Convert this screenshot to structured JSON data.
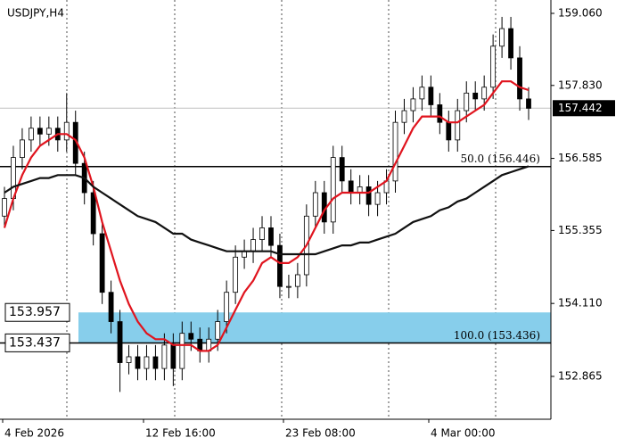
{
  "chart_data": {
    "type": "candlestick",
    "title": "USDJPY,H4",
    "ylim": [
      152.134,
      159.288
    ],
    "yticks": [
      {
        "value": 159.06,
        "label": "159.060"
      },
      {
        "value": 157.83,
        "label": "157.830"
      },
      {
        "value": 156.585,
        "label": "156.585"
      },
      {
        "value": 155.355,
        "label": "155.355"
      },
      {
        "value": 154.11,
        "label": "154.110"
      },
      {
        "value": 152.865,
        "label": "152.865"
      }
    ],
    "xtick_labels": [
      "4 Feb 2026",
      "12 Feb 16:00",
      "23 Feb 08:00",
      "4 Mar 00:00"
    ],
    "up_color": "#ffffff",
    "down_color": "#000000",
    "open": [
      155.6,
      155.9,
      156.6,
      156.9,
      157.1,
      157.0,
      157.1,
      156.9,
      157.2,
      156.5,
      156.0,
      155.3,
      154.3,
      153.8,
      153.1,
      153.2,
      153.0,
      153.2,
      153.0,
      153.4,
      153.0,
      153.6,
      153.5,
      153.3,
      153.5,
      153.8,
      154.3,
      154.9,
      155.0,
      155.2,
      155.4,
      155.1,
      154.4,
      154.4,
      154.6,
      155.6,
      156.0,
      155.5,
      156.6,
      156.2,
      156.0,
      156.1,
      155.8,
      156.0,
      156.2,
      157.2,
      157.4,
      157.6,
      157.8,
      157.5,
      157.2,
      156.9,
      157.4,
      157.7,
      157.6,
      157.8,
      158.5,
      158.8,
      158.3,
      157.6
    ],
    "high": [
      156.1,
      156.8,
      157.1,
      157.3,
      157.3,
      157.3,
      157.3,
      157.7,
      157.4,
      156.7,
      156.2,
      155.5,
      154.5,
      154.0,
      153.4,
      153.4,
      153.4,
      153.4,
      153.6,
      153.6,
      153.8,
      153.8,
      153.7,
      153.7,
      154.0,
      154.5,
      155.1,
      155.2,
      155.4,
      155.6,
      155.6,
      155.3,
      154.6,
      154.8,
      155.8,
      156.2,
      156.2,
      156.8,
      156.8,
      156.4,
      156.3,
      156.3,
      156.2,
      156.4,
      157.4,
      157.6,
      157.8,
      158.0,
      158.0,
      157.7,
      157.4,
      157.6,
      157.9,
      157.9,
      158.0,
      158.7,
      159.0,
      159.0,
      158.5,
      157.8
    ],
    "low": [
      155.4,
      155.7,
      156.4,
      156.7,
      156.8,
      156.8,
      156.7,
      156.7,
      156.3,
      155.8,
      155.1,
      154.1,
      153.6,
      152.6,
      152.9,
      152.8,
      152.8,
      152.8,
      152.8,
      152.7,
      152.8,
      153.3,
      153.1,
      153.1,
      153.3,
      153.6,
      154.1,
      154.7,
      154.8,
      155.0,
      154.9,
      154.2,
      154.2,
      154.2,
      154.4,
      155.4,
      155.3,
      155.3,
      156.0,
      155.8,
      155.8,
      155.6,
      155.6,
      155.8,
      156.0,
      157.0,
      157.2,
      157.4,
      157.3,
      157.0,
      156.7,
      156.7,
      157.2,
      157.4,
      157.4,
      157.6,
      158.3,
      158.1,
      157.4,
      157.24
    ],
    "close": [
      155.9,
      156.6,
      156.9,
      157.1,
      157.0,
      157.1,
      156.9,
      157.2,
      156.5,
      156.0,
      155.3,
      154.3,
      153.8,
      153.1,
      153.2,
      153.0,
      153.2,
      153.0,
      153.4,
      153.0,
      153.6,
      153.5,
      153.3,
      153.5,
      153.8,
      154.3,
      154.9,
      155.0,
      155.2,
      155.4,
      155.1,
      154.4,
      154.4,
      154.6,
      155.6,
      156.0,
      155.5,
      156.6,
      156.2,
      156.0,
      156.1,
      155.8,
      156.0,
      156.2,
      157.2,
      157.4,
      157.6,
      157.8,
      157.5,
      157.2,
      156.9,
      157.4,
      157.7,
      157.6,
      157.8,
      158.5,
      158.8,
      158.3,
      157.6,
      157.44
    ],
    "series": [
      {
        "color": "#e0141e",
        "values": [
          155.4,
          155.9,
          156.3,
          156.6,
          156.8,
          156.9,
          157.0,
          157.0,
          156.9,
          156.6,
          156.1,
          155.5,
          155.0,
          154.5,
          154.1,
          153.8,
          153.6,
          153.5,
          153.5,
          153.4,
          153.4,
          153.4,
          153.3,
          153.3,
          153.4,
          153.7,
          154.0,
          154.3,
          154.5,
          154.8,
          154.9,
          154.8,
          154.8,
          154.9,
          155.1,
          155.4,
          155.7,
          155.9,
          156.0,
          156.0,
          156.0,
          156.0,
          156.1,
          156.2,
          156.5,
          156.8,
          157.1,
          157.3,
          157.3,
          157.3,
          157.2,
          157.2,
          157.3,
          157.4,
          157.5,
          157.7,
          157.9,
          157.9,
          157.8,
          157.75
        ]
      },
      {
        "color": "#111111",
        "values": [
          156.0,
          156.1,
          156.15,
          156.2,
          156.25,
          156.25,
          156.3,
          156.3,
          156.3,
          156.25,
          156.1,
          156.0,
          155.9,
          155.8,
          155.7,
          155.6,
          155.55,
          155.5,
          155.4,
          155.3,
          155.3,
          155.2,
          155.15,
          155.1,
          155.05,
          155.0,
          155.0,
          155.0,
          155.0,
          155.0,
          155.0,
          154.95,
          154.95,
          154.95,
          154.95,
          154.95,
          155.0,
          155.05,
          155.1,
          155.1,
          155.15,
          155.15,
          155.2,
          155.25,
          155.3,
          155.4,
          155.5,
          155.55,
          155.6,
          155.7,
          155.75,
          155.85,
          155.9,
          156.0,
          156.1,
          156.2,
          156.3,
          156.35,
          156.4,
          156.45
        ]
      }
    ],
    "fib_levels": [
      {
        "value": 156.446,
        "label": "50.0 (156.446)"
      },
      {
        "value": 153.436,
        "label": "100.0 (153.436)"
      }
    ],
    "zone": {
      "top": 153.957,
      "bottom": 153.437,
      "color": "#87ceeb"
    },
    "current_price": 157.442,
    "grid": true
  }
}
